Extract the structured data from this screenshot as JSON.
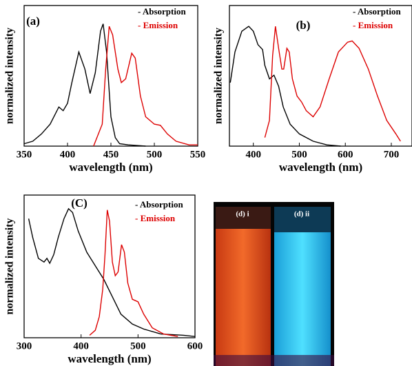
{
  "chart_data": [
    {
      "type": "line",
      "panel_label": "(a)",
      "xlabel": "wavelength (nm)",
      "ylabel": "normalized intensity",
      "xlim": [
        350,
        550
      ],
      "xticks": [
        350,
        400,
        450,
        500,
        550
      ],
      "ylim": [
        0,
        1.15
      ],
      "series": [
        {
          "name": "- Absorption",
          "color": "#000000",
          "x": [
            350,
            360,
            370,
            380,
            390,
            395,
            400,
            405,
            413,
            420,
            426,
            432,
            438,
            441,
            445,
            450,
            455,
            460,
            470,
            490
          ],
          "values": [
            0.02,
            0.04,
            0.1,
            0.18,
            0.32,
            0.29,
            0.35,
            0.52,
            0.77,
            0.63,
            0.43,
            0.6,
            0.94,
            1.0,
            0.77,
            0.24,
            0.07,
            0.02,
            0.01,
            0
          ]
        },
        {
          "name": "- Emission",
          "color": "#dd0000",
          "x": [
            430,
            440,
            444,
            448,
            452,
            458,
            462,
            467,
            474,
            478,
            484,
            490,
            500,
            507,
            515,
            525,
            540,
            550
          ],
          "values": [
            0,
            0.18,
            0.63,
            0.98,
            0.91,
            0.63,
            0.52,
            0.55,
            0.76,
            0.72,
            0.41,
            0.24,
            0.18,
            0.17,
            0.1,
            0.04,
            0.01,
            0.01
          ]
        }
      ]
    },
    {
      "type": "line",
      "panel_label": "(b)",
      "xlabel": "wavelength (nm)",
      "ylabel": "normalized intensity",
      "xlim": [
        348,
        745
      ],
      "xticks": [
        400,
        500,
        600,
        700
      ],
      "ylim": [
        0,
        1.15
      ],
      "series": [
        {
          "name": "- Absorption",
          "color": "#000000",
          "x": [
            350,
            360,
            375,
            390,
            400,
            410,
            420,
            425,
            435,
            445,
            455,
            465,
            480,
            500,
            530,
            560,
            590
          ],
          "values": [
            0.52,
            0.77,
            0.94,
            0.98,
            0.94,
            0.83,
            0.79,
            0.66,
            0.55,
            0.58,
            0.49,
            0.32,
            0.18,
            0.1,
            0.04,
            0.01,
            0
          ]
        },
        {
          "name": "- Emission",
          "color": "#dd0000",
          "x": [
            425,
            435,
            442,
            448,
            455,
            462,
            466,
            473,
            478,
            485,
            495,
            505,
            515,
            530,
            545,
            565,
            585,
            605,
            615,
            630,
            650,
            670,
            690,
            710,
            720
          ],
          "values": [
            0.07,
            0.21,
            0.74,
            0.98,
            0.8,
            0.63,
            0.63,
            0.8,
            0.77,
            0.55,
            0.41,
            0.36,
            0.29,
            0.24,
            0.32,
            0.55,
            0.77,
            0.85,
            0.86,
            0.8,
            0.63,
            0.41,
            0.21,
            0.1,
            0.04
          ]
        }
      ]
    },
    {
      "type": "line",
      "panel_label": "(C)",
      "xlabel": "wavelength (nm)",
      "ylabel": "normalized intensity",
      "xlim": [
        300,
        600
      ],
      "xticks": [
        300,
        400,
        500,
        600
      ],
      "ylim": [
        0,
        1.15
      ],
      "series": [
        {
          "name": "- Absorption",
          "color": "#000000",
          "x": [
            308,
            315,
            325,
            335,
            340,
            345,
            352,
            360,
            370,
            378,
            385,
            395,
            410,
            425,
            440,
            455,
            470,
            490,
            510,
            540,
            580,
            600
          ],
          "values": [
            0.96,
            0.81,
            0.64,
            0.61,
            0.64,
            0.6,
            0.67,
            0.81,
            0.96,
            1.04,
            1.01,
            0.86,
            0.69,
            0.58,
            0.47,
            0.33,
            0.19,
            0.11,
            0.07,
            0.03,
            0.02,
            0.01
          ]
        },
        {
          "name": "- Emission",
          "color": "#dd0000",
          "x": [
            415,
            425,
            432,
            438,
            442,
            446,
            450,
            455,
            460,
            465,
            471,
            476,
            482,
            490,
            500,
            510,
            525,
            545,
            570
          ],
          "values": [
            0.02,
            0.06,
            0.17,
            0.39,
            0.67,
            1.03,
            0.94,
            0.61,
            0.5,
            0.53,
            0.75,
            0.69,
            0.44,
            0.31,
            0.29,
            0.19,
            0.08,
            0.03,
            0.01
          ]
        }
      ]
    }
  ],
  "photo": {
    "left_label": "(d) i",
    "right_label": "(d) ii"
  }
}
